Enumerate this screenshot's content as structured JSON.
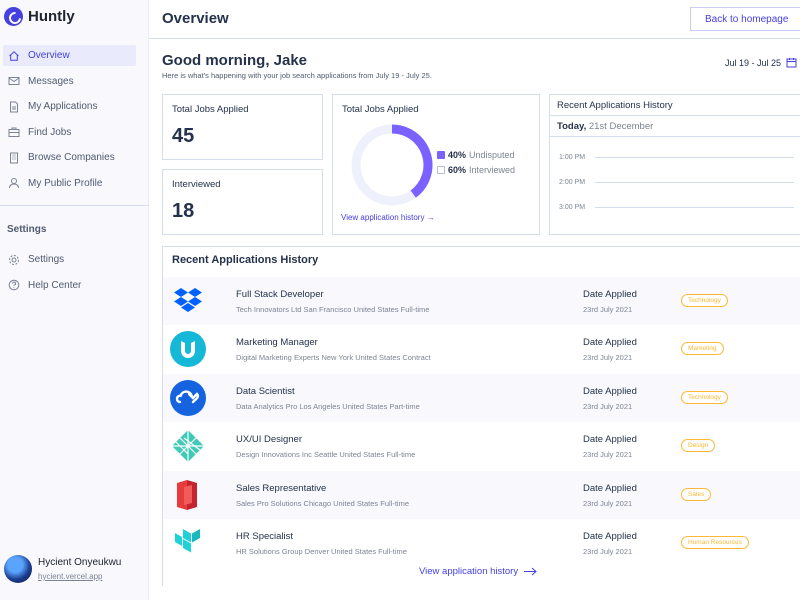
{
  "brand": {
    "name": "Huntly",
    "accent": "#4640DE"
  },
  "nav": [
    {
      "label": "Overview",
      "icon": "home-icon",
      "active": true
    },
    {
      "label": "Messages",
      "icon": "mail-icon"
    },
    {
      "label": "My Applications",
      "icon": "document-icon"
    },
    {
      "label": "Find Jobs",
      "icon": "briefcase-icon"
    },
    {
      "label": "Browse Companies",
      "icon": "building-icon"
    },
    {
      "label": "My Public Profile",
      "icon": "user-icon"
    }
  ],
  "settings": {
    "title": "Settings",
    "items": [
      {
        "label": "Settings",
        "icon": "gear-icon"
      },
      {
        "label": "Help Center",
        "icon": "help-icon"
      }
    ]
  },
  "profile": {
    "name": "Hycient Onyeukwu",
    "link": "hycient.vercel.app"
  },
  "header": {
    "title": "Overview",
    "back_label": "Back to homepage"
  },
  "greeting": {
    "title": "Good morning, Jake",
    "subtitle": "Here is what's happening with your job search applications from July 19 - July 25.",
    "date_range": "Jul 19 - Jul 25"
  },
  "stats": {
    "applied": {
      "label": "Total Jobs Applied",
      "value": "45"
    },
    "interviewed": {
      "label": "Interviewed",
      "value": "18"
    }
  },
  "donut": {
    "title": "Total Jobs Applied",
    "legend": [
      {
        "pct": "40%",
        "label": "Undisputed",
        "color": "#7B61FF"
      },
      {
        "pct": "60%",
        "label": "Interviewed",
        "color": "#E9EBFD"
      }
    ],
    "link": "View application history"
  },
  "chart_data": {
    "type": "pie",
    "title": "Total Jobs Applied",
    "categories": [
      "Undisputed",
      "Interviewed"
    ],
    "values": [
      40,
      60
    ]
  },
  "history_panel": {
    "title": "Recent Applications History",
    "day_bold": "Today,",
    "day_rest": "21st December",
    "times": [
      "1:00 PM",
      "2:00 PM",
      "3:00 PM"
    ]
  },
  "recent": {
    "title": "Recent Applications History",
    "date_label": "Date Applied",
    "link": "View application history",
    "rows": [
      {
        "title": "Full Stack Developer",
        "sub": "Tech Innovators Ltd San Francisco United States Full-time",
        "date": "23rd July 2021",
        "tag": "Technology",
        "logo": "dropbox-logo-icon"
      },
      {
        "title": "Marketing Manager",
        "sub": "Digital Marketing Experts New York United States Contract",
        "date": "23rd July 2021",
        "tag": "Marketing",
        "logo": "udacity-logo-icon"
      },
      {
        "title": "Data Scientist",
        "sub": "Data Analytics Pro Los Angeles United States Part-time",
        "date": "23rd July 2021",
        "tag": "Technology",
        "logo": "cloud-link-logo-icon"
      },
      {
        "title": "UX/UI Designer",
        "sub": "Design Innovations Inc Seattle United States Full-time",
        "date": "23rd July 2021",
        "tag": "Design",
        "logo": "netlify-logo-icon"
      },
      {
        "title": "Sales Representative",
        "sub": "Sales Pro Solutions Chicago United States Full-time",
        "date": "23rd July 2021",
        "tag": "Sales",
        "logo": "red-flag-logo-icon"
      },
      {
        "title": "HR Specialist",
        "sub": "HR Solutions Group Denver United States Full-time",
        "date": "23rd July 2021",
        "tag": "Human Resources",
        "logo": "terraform-logo-icon"
      }
    ]
  }
}
